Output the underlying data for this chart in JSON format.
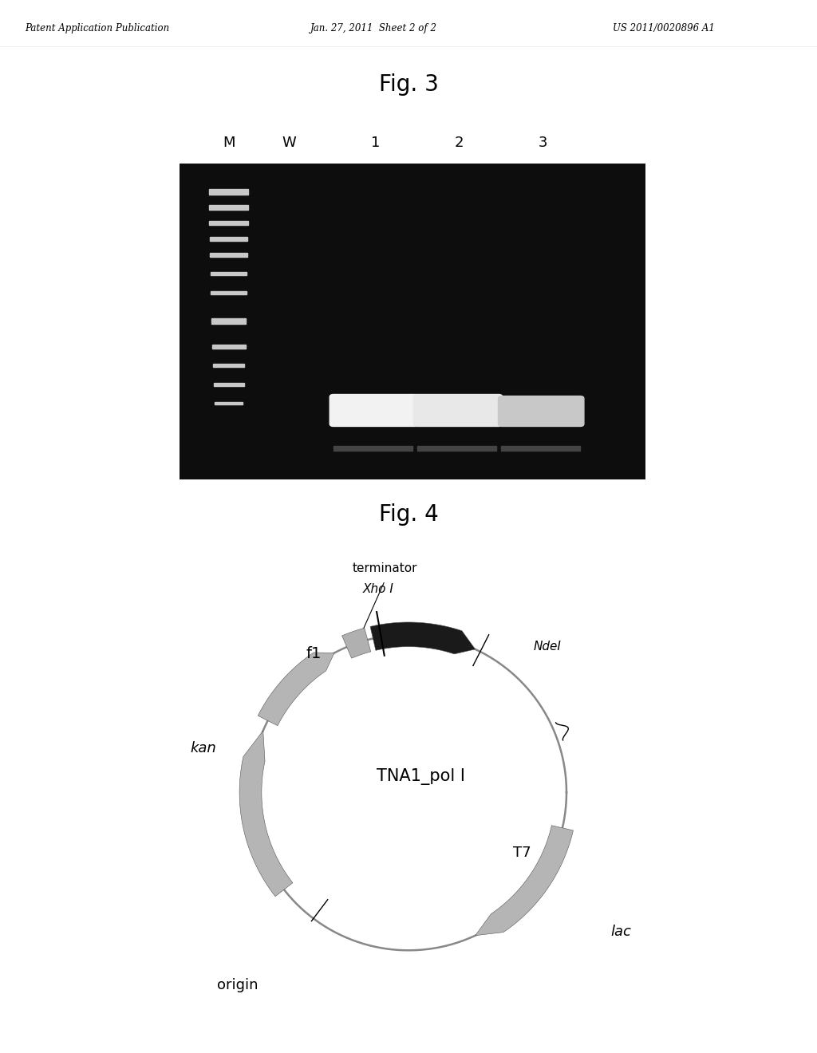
{
  "page_header_left": "Patent Application Publication",
  "page_header_mid": "Jan. 27, 2011  Sheet 2 of 2",
  "page_header_right": "US 2011/0020896 A1",
  "fig3_title": "Fig. 3",
  "fig4_title": "Fig. 4",
  "gel_labels": [
    "M",
    "W",
    "1",
    "2",
    "3"
  ],
  "gel_bg": "#111111",
  "plasmid_label": "TNA1_pol I",
  "background_color": "#ffffff",
  "text_color": "#000000"
}
